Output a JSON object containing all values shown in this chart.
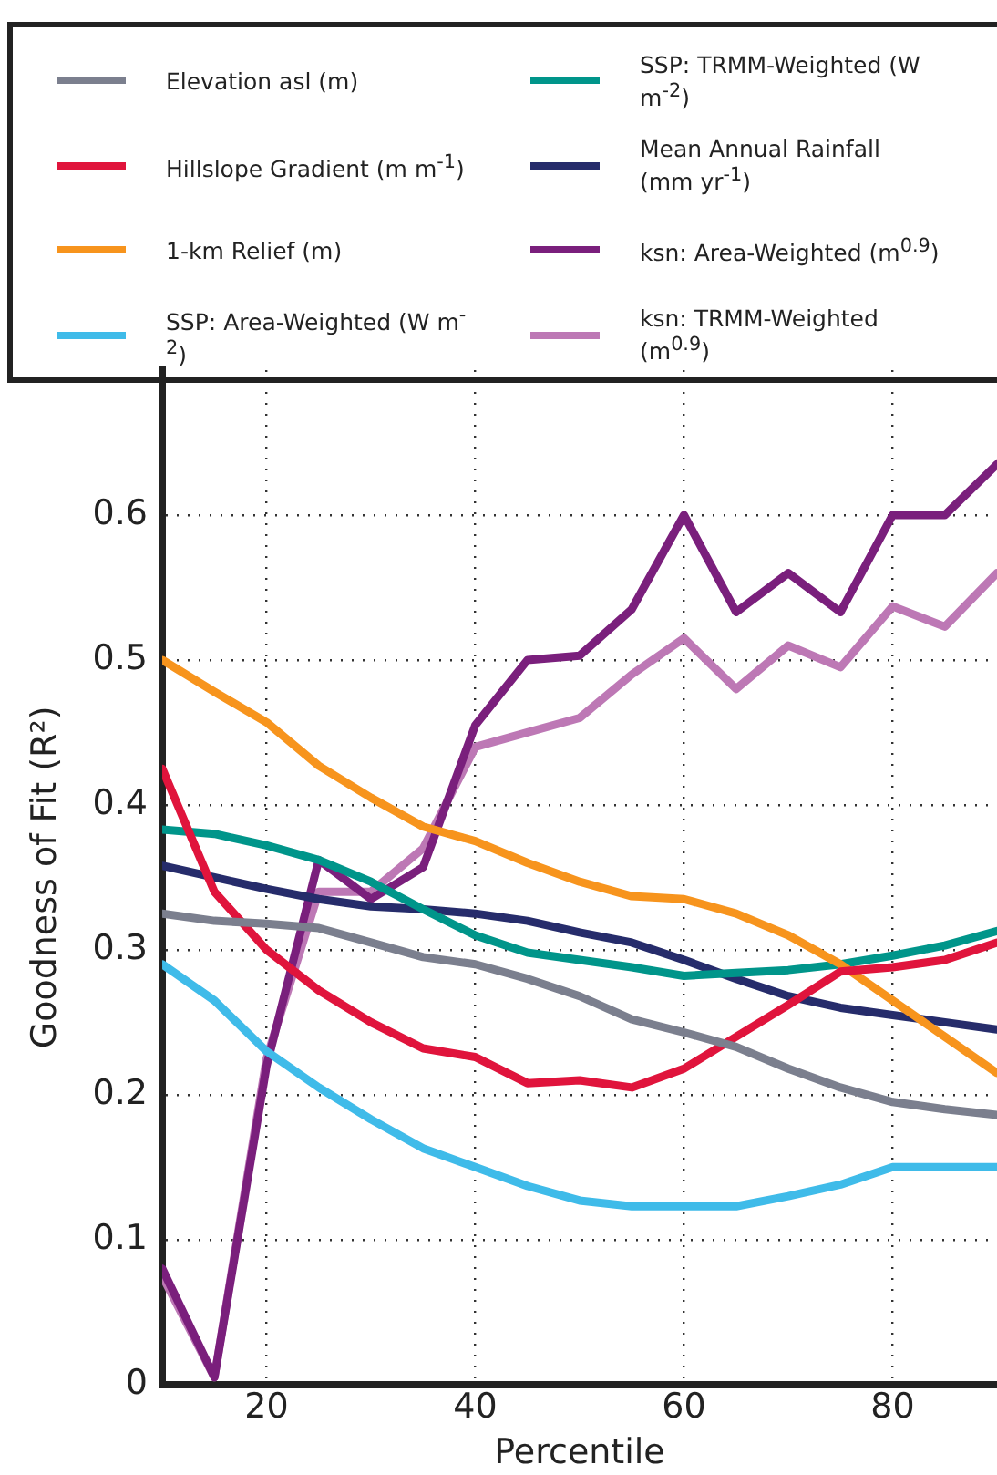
{
  "chart_data": {
    "type": "line",
    "xlabel": "Percentile",
    "ylabel": "Goodness of Fit (R²)",
    "x": [
      10,
      15,
      20,
      25,
      30,
      35,
      40,
      45,
      50,
      55,
      60,
      65,
      70,
      75,
      80,
      85,
      90
    ],
    "xlim": [
      10,
      90
    ],
    "xticks": [
      20,
      40,
      60,
      80
    ],
    "ylim": [
      0,
      0.7
    ],
    "yticks": [
      0,
      0.1,
      0.2,
      0.3,
      0.4,
      0.5,
      0.6
    ],
    "grid": true,
    "legend": "top",
    "marker": "none",
    "line_style": "solid",
    "series": [
      {
        "name": "Elevation asl (m)",
        "color": "#7b7f8e",
        "values": [
          0.325,
          0.32,
          0.318,
          0.315,
          0.305,
          0.295,
          0.29,
          0.28,
          0.268,
          0.252,
          0.243,
          0.233,
          0.218,
          0.205,
          0.195,
          0.19,
          0.186
        ]
      },
      {
        "name": "Hillslope Gradient (m m$^{-1}$)",
        "color": "#e0143c",
        "values": [
          0.425,
          0.34,
          0.3,
          0.272,
          0.25,
          0.232,
          0.226,
          0.208,
          0.21,
          0.205,
          0.218,
          0.24,
          0.262,
          0.285,
          0.288,
          0.293,
          0.305
        ]
      },
      {
        "name": "1-km Relief (m)",
        "color": "#f7941d",
        "values": [
          0.5,
          0.478,
          0.457,
          0.427,
          0.405,
          0.385,
          0.375,
          0.36,
          0.347,
          0.337,
          0.335,
          0.325,
          0.31,
          0.29,
          0.265,
          0.24,
          0.215
        ]
      },
      {
        "name": "SSP: Area-Weighted (W m$^{-2}$)",
        "color": "#3fbbe9",
        "values": [
          0.29,
          0.265,
          0.23,
          0.205,
          0.183,
          0.163,
          0.15,
          0.137,
          0.127,
          0.123,
          0.123,
          0.123,
          0.13,
          0.138,
          0.15,
          0.15,
          0.15
        ]
      },
      {
        "name": "SSP: TRMM-Weighted (W m$^{-2}$)",
        "color": "#00958a",
        "values": [
          0.383,
          0.38,
          0.372,
          0.362,
          0.347,
          0.328,
          0.31,
          0.298,
          0.293,
          0.288,
          0.282,
          0.284,
          0.286,
          0.29,
          0.296,
          0.303,
          0.313
        ]
      },
      {
        "name": "Mean Annual Rainfall (mm yr$^{-1}$)",
        "color": "#262c6b",
        "values": [
          0.358,
          0.35,
          0.342,
          0.335,
          0.33,
          0.328,
          0.325,
          0.32,
          0.312,
          0.305,
          0.293,
          0.28,
          0.268,
          0.26,
          0.255,
          0.25,
          0.245
        ]
      },
      {
        "name": "ksn: Area-Weighted (m$^{0.9}$)",
        "color": "#7a1f7c",
        "values": [
          0.08,
          0.005,
          0.22,
          0.362,
          0.335,
          0.357,
          0.455,
          0.5,
          0.503,
          0.535,
          0.6,
          0.533,
          0.56,
          0.533,
          0.6,
          0.6,
          0.635
        ]
      },
      {
        "name": "ksn: TRMM-Weighted (m$^{0.9}$)",
        "color": "#bd78b5",
        "values": [
          0.075,
          0.005,
          0.225,
          0.34,
          0.34,
          0.37,
          0.44,
          0.45,
          0.46,
          0.49,
          0.515,
          0.48,
          0.51,
          0.495,
          0.537,
          0.523,
          0.56
        ]
      }
    ]
  }
}
